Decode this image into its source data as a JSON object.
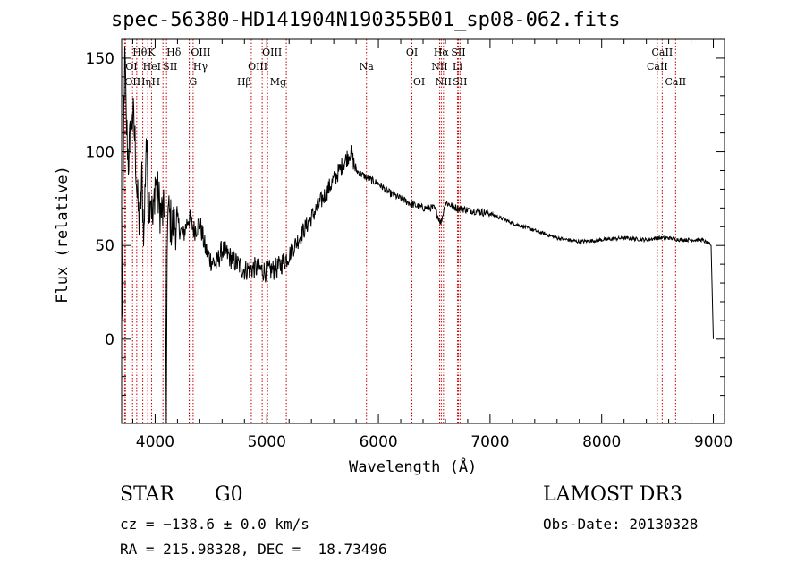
{
  "chart_data": {
    "type": "line",
    "title": "spec-56380-HD141904N190355B01_sp08-062.fits",
    "xlabel": "Wavelength (Å)",
    "ylabel": "Flux (relative)",
    "xlim": [
      3700,
      9100
    ],
    "ylim": [
      -45,
      160
    ],
    "xticks": [
      4000,
      5000,
      6000,
      7000,
      8000,
      9000
    ],
    "yticks": [
      0,
      50,
      100,
      150
    ],
    "colors": {
      "spectrum": "#000000",
      "lines": "#cc0000"
    },
    "series": [
      {
        "name": "flux",
        "x": [
          3700,
          3710,
          3720,
          3730,
          3740,
          3760,
          3780,
          3800,
          3820,
          3840,
          3860,
          3880,
          3900,
          3920,
          3940,
          3960,
          3980,
          4000,
          4050,
          4090,
          4100,
          4110,
          4150,
          4200,
          4250,
          4300,
          4350,
          4400,
          4450,
          4500,
          4550,
          4600,
          4700,
          4800,
          4900,
          5000,
          5100,
          5200,
          5300,
          5400,
          5500,
          5600,
          5700,
          5750,
          5800,
          5900,
          6000,
          6100,
          6200,
          6300,
          6400,
          6500,
          6560,
          6600,
          6700,
          6800,
          6900,
          7000,
          7200,
          7400,
          7600,
          7800,
          8000,
          8200,
          8400,
          8500,
          8600,
          8700,
          8800,
          8900,
          8980,
          9000
        ],
        "values": [
          5,
          40,
          125,
          150,
          118,
          95,
          110,
          120,
          105,
          75,
          60,
          85,
          55,
          110,
          70,
          80,
          60,
          85,
          68,
          65,
          -45,
          70,
          60,
          62,
          55,
          65,
          58,
          62,
          48,
          42,
          40,
          48,
          42,
          37,
          38,
          36,
          38,
          45,
          55,
          65,
          75,
          85,
          95,
          100,
          90,
          86,
          83,
          78,
          75,
          72,
          70,
          70,
          62,
          73,
          70,
          69,
          68,
          67,
          62,
          58,
          54,
          52,
          53,
          54,
          53,
          54,
          54,
          53,
          53,
          53,
          50,
          0
        ]
      }
    ],
    "line_markers": [
      {
        "label": "OII",
        "x": 3727,
        "row": 3,
        "align": "left"
      },
      {
        "label": "OI",
        "x": 3734,
        "row": 2,
        "align": "left"
      },
      {
        "label": "Hθ",
        "x": 3798,
        "row": 1,
        "align": "left"
      },
      {
        "label": "K",
        "x": 3934,
        "row": 1,
        "align": "left"
      },
      {
        "label": "HeI",
        "x": 3889,
        "row": 2,
        "align": "left"
      },
      {
        "label": "Hη",
        "x": 3835,
        "row": 3,
        "align": "left"
      },
      {
        "label": "H",
        "x": 3968,
        "row": 3,
        "align": "left"
      },
      {
        "label": "SII",
        "x": 4070,
        "row": 2,
        "align": "left"
      },
      {
        "label": "Hδ",
        "x": 4102,
        "row": 1,
        "align": "left"
      },
      {
        "label": "OIII",
        "x": 4320,
        "row": 1,
        "align": "left"
      },
      {
        "label": "Hγ",
        "x": 4340,
        "row": 2,
        "align": "left"
      },
      {
        "label": "G",
        "x": 4305,
        "row": 3,
        "align": "left"
      },
      {
        "label": "Hβ",
        "x": 4861,
        "row": 3,
        "align": "right"
      },
      {
        "label": "OIII",
        "x": 4959,
        "row": 1,
        "align": "left"
      },
      {
        "label": "OIII",
        "x": 5007,
        "row": 2,
        "align": "right"
      },
      {
        "label": "Mg",
        "x": 5175,
        "row": 3,
        "align": "right"
      },
      {
        "label": "Na",
        "x": 5893,
        "row": 2,
        "align": "center"
      },
      {
        "label": "OI",
        "x": 6300,
        "row": 1,
        "align": "center"
      },
      {
        "label": "OI",
        "x": 6364,
        "row": 3,
        "align": "center"
      },
      {
        "label": "Hα",
        "x": 6563,
        "row": 1,
        "align": "center"
      },
      {
        "label": "NII",
        "x": 6548,
        "row": 2,
        "align": "center"
      },
      {
        "label": "NII",
        "x": 6583,
        "row": 3,
        "align": "center"
      },
      {
        "label": "SII",
        "x": 6716,
        "row": 1,
        "align": "center"
      },
      {
        "label": "Li",
        "x": 6708,
        "row": 2,
        "align": "center"
      },
      {
        "label": "SII",
        "x": 6731,
        "row": 3,
        "align": "center"
      },
      {
        "label": "CaII",
        "x": 8542,
        "row": 1,
        "align": "center"
      },
      {
        "label": "CaII",
        "x": 8498,
        "row": 2,
        "align": "center"
      },
      {
        "label": "CaII",
        "x": 8662,
        "row": 3,
        "align": "center"
      }
    ]
  },
  "info": {
    "object_type": "STAR",
    "subclass": "G0",
    "survey": "LAMOST DR3",
    "cz": "cz = −138.6 ± 0.0 km/s",
    "obs_date": "Obs-Date: 20130328",
    "coords": "RA = 215.98328, DEC =  18.73496"
  }
}
